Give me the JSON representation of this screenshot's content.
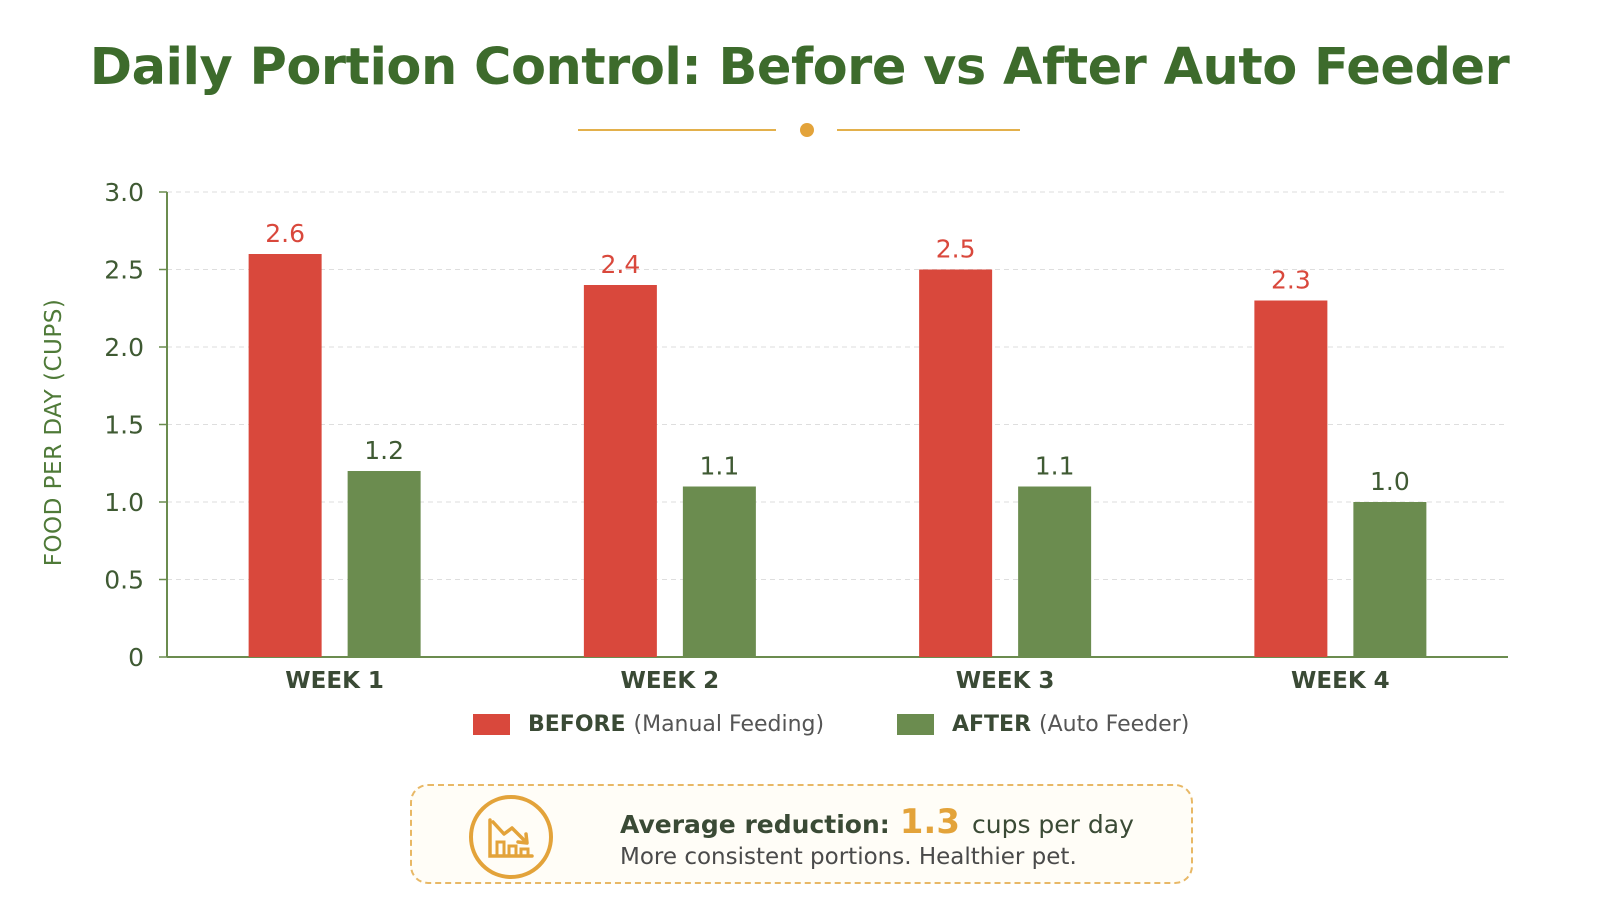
{
  "title": "Daily Portion Control: Before vs After Auto Feeder",
  "colors": {
    "before": "#d9483c",
    "after": "#6b8c4f",
    "title": "#3d6b2c",
    "accent": "#e3a33a",
    "axis": "#6b8c4f",
    "grid": "#dedede"
  },
  "chart_data": {
    "type": "bar",
    "categories": [
      "WEEK 1",
      "WEEK 2",
      "WEEK 3",
      "WEEK 4"
    ],
    "series": [
      {
        "name": "BEFORE",
        "values": [
          2.6,
          2.4,
          2.5,
          2.3
        ]
      },
      {
        "name": "AFTER",
        "values": [
          1.2,
          1.1,
          1.1,
          1.0
        ]
      }
    ],
    "value_labels": {
      "BEFORE": [
        "2.6",
        "2.4",
        "2.5",
        "2.3"
      ],
      "AFTER": [
        "1.2",
        "1.1",
        "1.1",
        "1.0"
      ]
    },
    "ylabel": "FOOD PER DAY (CUPS)",
    "xlabel": "",
    "ylim": [
      0,
      3.0
    ],
    "yticks": [
      0,
      0.5,
      1.0,
      1.5,
      2.0,
      2.5,
      3.0
    ],
    "ytick_labels": [
      "0",
      "0.5",
      "1.0",
      "1.5",
      "2.0",
      "2.5",
      "3.0"
    ],
    "grid": true,
    "legend_position": "bottom"
  },
  "legend": [
    {
      "name": "BEFORE",
      "desc": "(Manual Feeding)"
    },
    {
      "name": "AFTER",
      "desc": "(Auto Feeder)"
    }
  ],
  "callout": {
    "icon": "chart-decrease-icon",
    "label": "Average reduction:",
    "value": "1.3",
    "unit": "cups per day",
    "subtext": "More consistent portions. Healthier pet."
  }
}
